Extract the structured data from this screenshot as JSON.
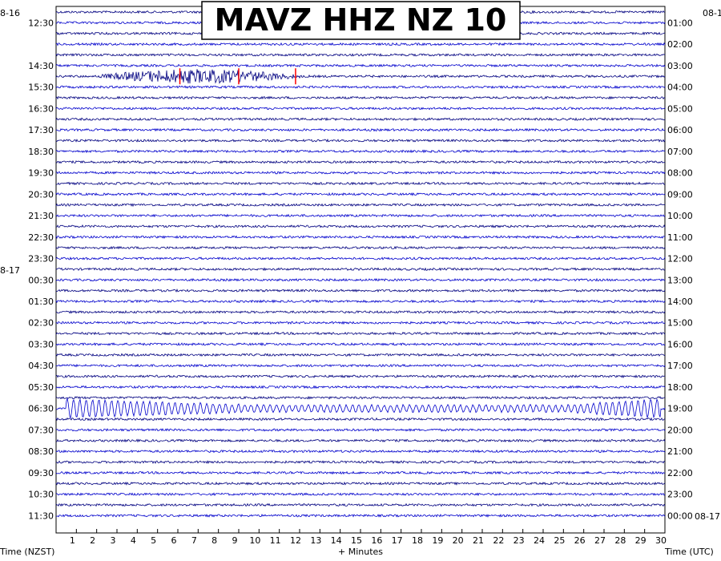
{
  "chart_data": {
    "type": "line",
    "title": "MAVZ HHZ NZ 10",
    "xlabel": "+ Minutes",
    "left_axis_label": "Time (NZST)",
    "right_axis_label": "Time (UTC)",
    "xlim": [
      0,
      30
    ],
    "x_ticks": [
      "1",
      "2",
      "3",
      "4",
      "5",
      "6",
      "7",
      "8",
      "9",
      "10",
      "11",
      "12",
      "13",
      "14",
      "15",
      "16",
      "17",
      "18",
      "19",
      "20",
      "21",
      "22",
      "23",
      "24",
      "25",
      "26",
      "27",
      "28",
      "29",
      "30"
    ],
    "date_labels_left": [
      {
        "text": "8-16",
        "row": 0
      },
      {
        "text": "8-17",
        "row": 24
      }
    ],
    "date_labels_right": [
      {
        "text": "08-1",
        "row": 0
      },
      {
        "text": "08-17",
        "row": 47
      }
    ],
    "left_time_labels": [
      "12:30",
      "14:30",
      "15:30",
      "16:30",
      "17:30",
      "18:30",
      "19:30",
      "20:30",
      "21:30",
      "22:30",
      "23:30",
      "00:30",
      "01:30",
      "02:30",
      "03:30",
      "04:30",
      "05:30",
      "06:30",
      "07:30",
      "08:30",
      "09:30",
      "10:30",
      "11:30"
    ],
    "right_time_labels": [
      "01:00",
      "02:00",
      "03:00",
      "04:00",
      "05:00",
      "06:00",
      "07:00",
      "08:00",
      "09:00",
      "10:00",
      "11:00",
      "12:00",
      "13:00",
      "14:00",
      "15:00",
      "16:00",
      "17:00",
      "18:00",
      "19:00",
      "20:00",
      "21:00",
      "22:00",
      "23:00",
      "00:00"
    ],
    "trace_count": 48,
    "trace_minutes": 30,
    "trace_colors": [
      "#000080",
      "#0000cc"
    ],
    "events": [
      {
        "name": "earthquake",
        "row": 6,
        "start_min": 2.0,
        "end_min": 12.0,
        "amplitude": "large"
      },
      {
        "name": "oscillation",
        "row": 37,
        "start_min": 0.5,
        "end_min": 29.8,
        "amplitude": "large"
      }
    ],
    "picks": [
      {
        "row": 6,
        "minute": 6.1,
        "color": "#ff0000"
      },
      {
        "row": 6,
        "minute": 9.0,
        "color": "#ff0000"
      },
      {
        "row": 6,
        "minute": 11.8,
        "color": "#ff0000"
      }
    ]
  }
}
